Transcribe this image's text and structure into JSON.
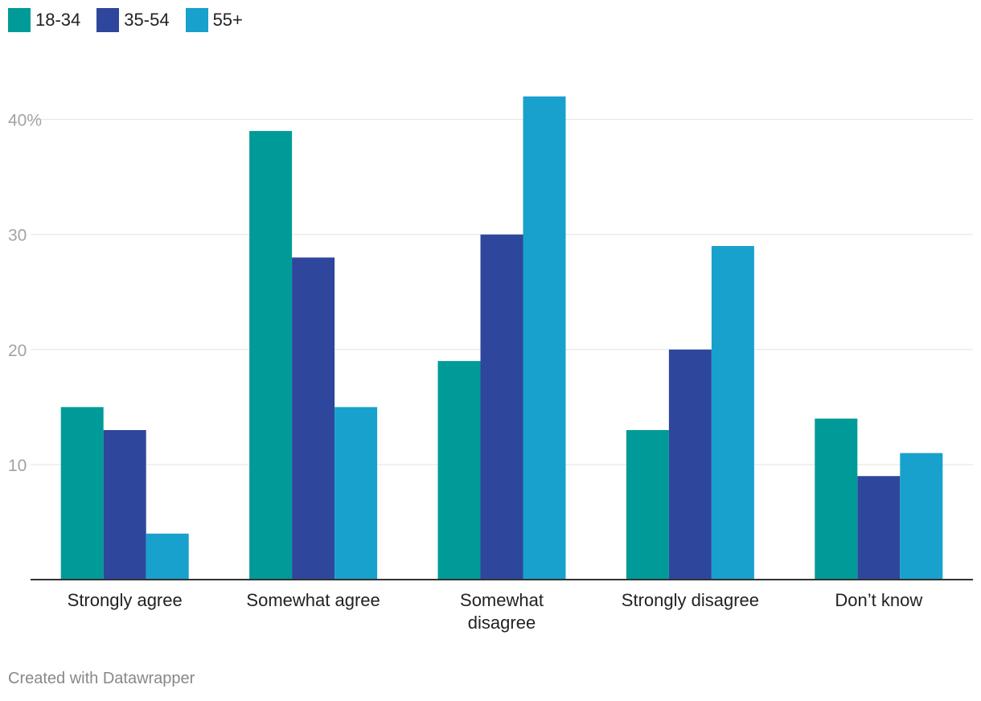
{
  "chart_data": {
    "type": "bar",
    "categories": [
      "Strongly agree",
      "Somewhat agree",
      "Somewhat disagree",
      "Strongly disagree",
      "Don’t know"
    ],
    "category_lines": [
      [
        "Strongly agree"
      ],
      [
        "Somewhat agree"
      ],
      [
        "Somewhat",
        "disagree"
      ],
      [
        "Strongly disagree"
      ],
      [
        "Don’t know"
      ]
    ],
    "series": [
      {
        "name": "18-34",
        "color": "#009b98",
        "values": [
          15,
          39,
          19,
          13,
          14
        ]
      },
      {
        "name": "35-54",
        "color": "#2e479c",
        "values": [
          13,
          28,
          30,
          20,
          9
        ]
      },
      {
        "name": "55+",
        "color": "#18a1cd",
        "values": [
          4,
          15,
          42,
          29,
          11
        ]
      }
    ],
    "y_ticks": [
      10,
      20,
      30,
      40
    ],
    "y_tick_labels": [
      "10",
      "20",
      "30",
      "40%"
    ],
    "ylim": [
      0,
      42
    ],
    "grid": true,
    "legend": "top-left",
    "title": "",
    "xlabel": "",
    "ylabel": ""
  },
  "legend": {
    "items": [
      {
        "label": "18-34"
      },
      {
        "label": "35-54"
      },
      {
        "label": "55+"
      }
    ]
  },
  "footer": {
    "credit": "Created with Datawrapper"
  }
}
